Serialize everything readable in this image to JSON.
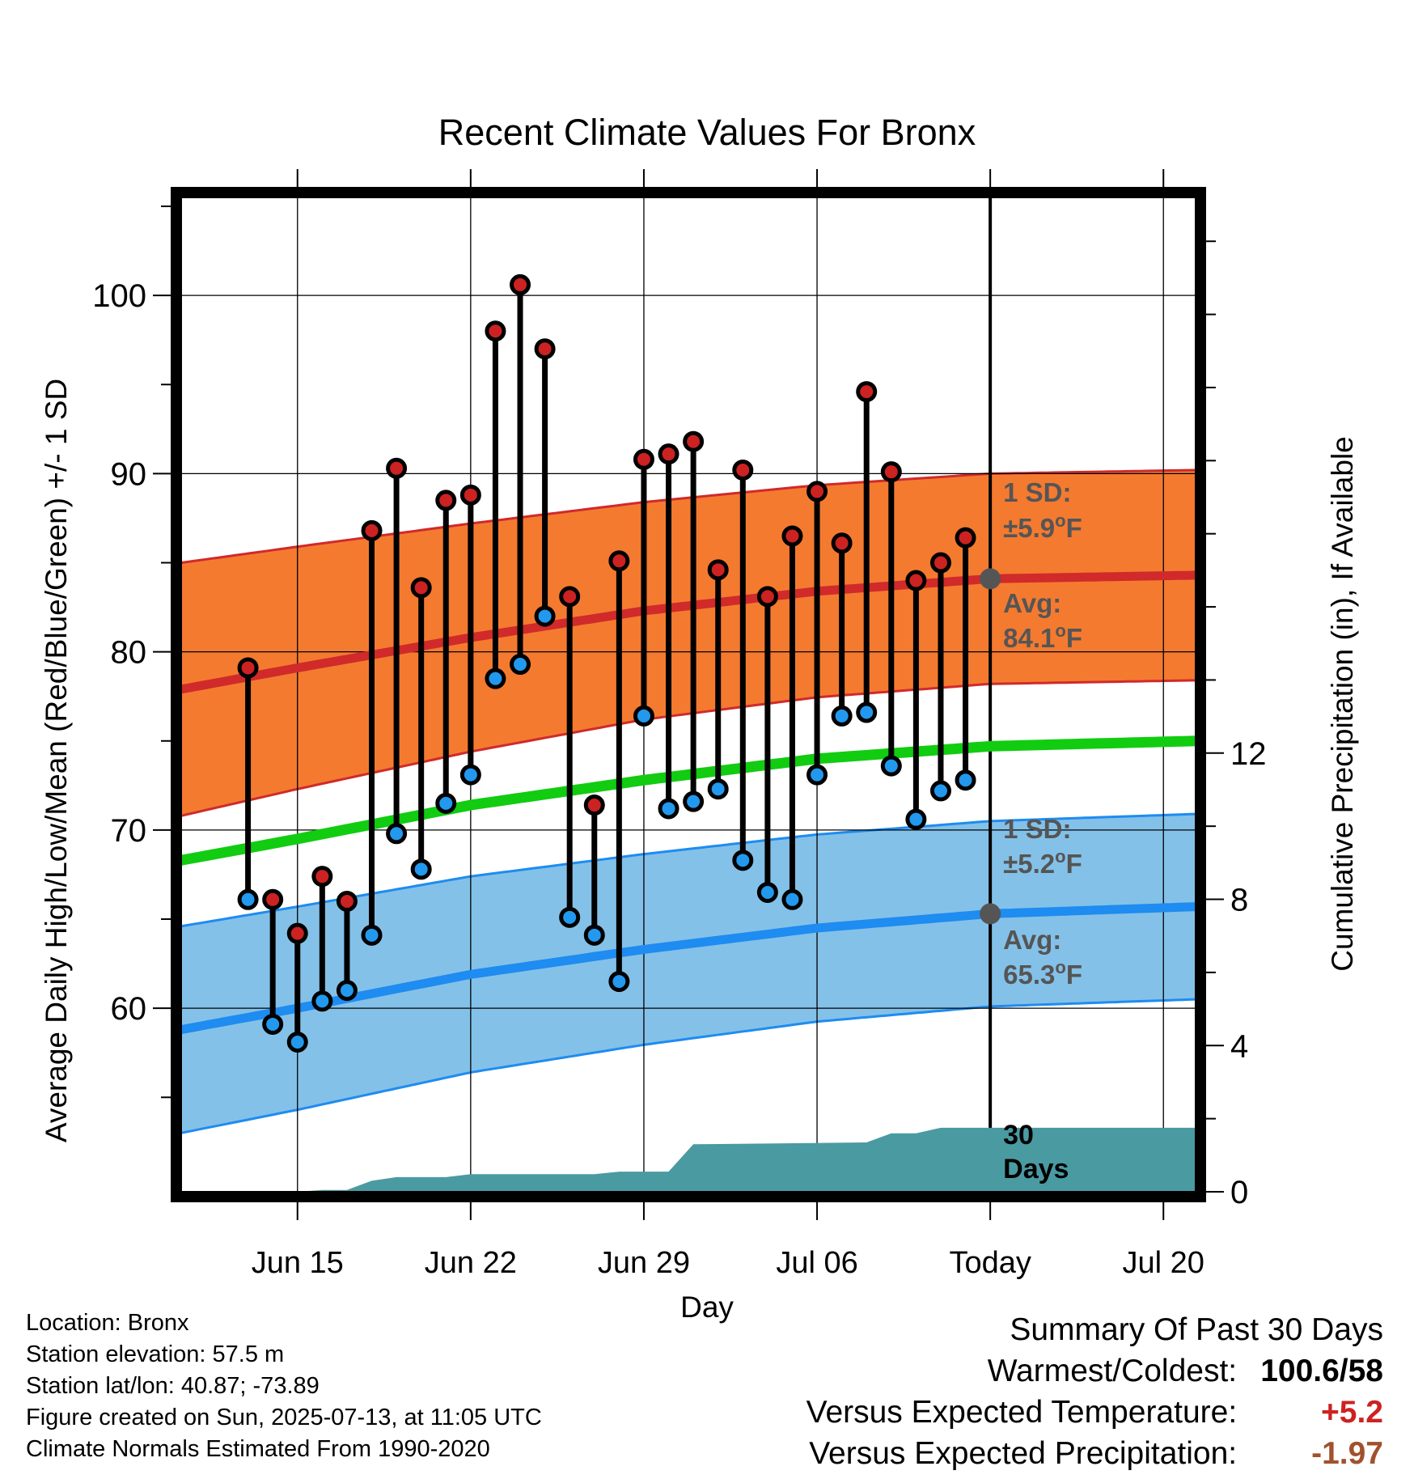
{
  "chart_data": {
    "type": "line",
    "title": "Recent Climate Values For Bronx",
    "xlabel": "Day",
    "ylabel": "Average Daily High/Low/Mean (Red/Blue/Green) +/- 1 SD",
    "y2label": "Cumulative Precipitation (in), If Available",
    "ylim": [
      49.7,
      105.5
    ],
    "y2lim": [
      0,
      27.2
    ],
    "xlim": [
      -4.7,
      36.3
    ],
    "y_ticks": [
      60,
      70,
      80,
      90,
      100
    ],
    "y2_ticks": [
      0,
      4,
      8,
      12
    ],
    "x_ticks": [
      {
        "day": 0,
        "label": "Jun 15"
      },
      {
        "day": 7,
        "label": "Jun 22"
      },
      {
        "day": 14,
        "label": "Jun 29"
      },
      {
        "day": 21,
        "label": "Jul 06"
      },
      {
        "day": 28,
        "label": "Today"
      },
      {
        "day": 35,
        "label": "Jul 20"
      }
    ],
    "grid": true,
    "today_day": 28,
    "days": [
      -2,
      -1,
      0,
      1,
      2,
      3,
      4,
      5,
      6,
      7,
      8,
      9,
      10,
      11,
      12,
      13,
      14,
      15,
      16,
      17,
      18,
      19,
      20,
      21,
      22,
      23,
      24,
      25,
      26,
      27
    ],
    "highs": [
      79.1,
      66.1,
      64.2,
      67.4,
      66.0,
      86.8,
      90.3,
      83.6,
      88.5,
      88.8,
      98.0,
      100.6,
      97.0,
      83.1,
      71.4,
      85.1,
      90.8,
      91.1,
      91.8,
      84.6,
      90.2,
      83.1,
      86.5,
      89.0,
      86.1,
      94.6,
      90.1,
      84.0,
      85.0,
      86.4
    ],
    "lows": [
      66.1,
      59.1,
      58.1,
      60.4,
      61.0,
      64.1,
      69.8,
      67.8,
      71.5,
      73.1,
      78.5,
      79.3,
      82.0,
      65.1,
      64.1,
      61.5,
      76.4,
      71.2,
      71.6,
      72.3,
      68.3,
      66.5,
      66.1,
      73.1,
      76.4,
      76.6,
      73.6,
      70.6,
      72.2,
      72.8
    ],
    "normal_high": [
      {
        "day": -4.7,
        "avg": 77.9,
        "sd": 7.1
      },
      {
        "day": 0,
        "avg": 79.1,
        "sd": 6.8
      },
      {
        "day": 7,
        "avg": 80.8,
        "sd": 6.4
      },
      {
        "day": 14,
        "avg": 82.3,
        "sd": 6.1
      },
      {
        "day": 21,
        "avg": 83.4,
        "sd": 5.95
      },
      {
        "day": 28,
        "avg": 84.1,
        "sd": 5.9
      },
      {
        "day": 36.3,
        "avg": 84.3,
        "sd": 5.9
      }
    ],
    "normal_low": [
      {
        "day": -4.7,
        "avg": 58.8,
        "sd": 5.8
      },
      {
        "day": 0,
        "avg": 60.0,
        "sd": 5.7
      },
      {
        "day": 7,
        "avg": 61.9,
        "sd": 5.5
      },
      {
        "day": 14,
        "avg": 63.3,
        "sd": 5.35
      },
      {
        "day": 21,
        "avg": 64.5,
        "sd": 5.25
      },
      {
        "day": 28,
        "avg": 65.3,
        "sd": 5.2
      },
      {
        "day": 36.3,
        "avg": 65.7,
        "sd": 5.2
      }
    ],
    "normal_mean": [
      {
        "day": -4.7,
        "avg": 68.3
      },
      {
        "day": 0,
        "avg": 69.5
      },
      {
        "day": 7,
        "avg": 71.4
      },
      {
        "day": 14,
        "avg": 72.8
      },
      {
        "day": 21,
        "avg": 74.0
      },
      {
        "day": 28,
        "avg": 74.7
      },
      {
        "day": 36.3,
        "avg": 75.0
      }
    ],
    "precip_cumulative": [
      {
        "day": -4.7,
        "value": 0
      },
      {
        "day": 0,
        "value": 0
      },
      {
        "day": 1,
        "value": 0.05
      },
      {
        "day": 2,
        "value": 0.05
      },
      {
        "day": 3,
        "value": 0.3
      },
      {
        "day": 4,
        "value": 0.4
      },
      {
        "day": 6,
        "value": 0.4
      },
      {
        "day": 7,
        "value": 0.48
      },
      {
        "day": 12,
        "value": 0.48
      },
      {
        "day": 13,
        "value": 0.55
      },
      {
        "day": 15,
        "value": 0.55
      },
      {
        "day": 16,
        "value": 1.3
      },
      {
        "day": 23,
        "value": 1.35
      },
      {
        "day": 24,
        "value": 1.6
      },
      {
        "day": 25,
        "value": 1.6
      },
      {
        "day": 26,
        "value": 1.75
      },
      {
        "day": 28,
        "value": 1.75
      },
      {
        "day": 36.3,
        "value": 1.75
      }
    ],
    "annotations": {
      "high_sd_label": "1 SD:",
      "high_sd_value": "±5.9",
      "high_avg_label": "Avg:",
      "high_avg_value": "84.1",
      "low_sd_label": "1 SD:",
      "low_sd_value": "±5.2",
      "low_avg_label": "Avg:",
      "low_avg_value": "65.3",
      "unit": "F",
      "degree": "o",
      "days_label_1": "30",
      "days_label_2": "Days"
    }
  },
  "colors": {
    "high_band": "#f47a30",
    "high_line": "#d02a2a",
    "low_band": "#84c1e8",
    "low_line": "#1e8cf0",
    "mean_line": "#11cc11",
    "precip": "#4a9aa2",
    "high_dot": "#cc2222",
    "low_dot": "#2299ee",
    "annotation": "#555555",
    "warm_value": "#cc2222",
    "precip_value": "#a0522d"
  },
  "footer": {
    "location": "Location: Bronx",
    "elevation": "Station elevation: 57.5 m",
    "latlon": "Station lat/lon: 40.87; -73.89",
    "created": "Figure created on Sun, 2025-07-13, at 11:05 UTC",
    "normals": "Climate Normals Estimated From 1990-2020"
  },
  "summary": {
    "heading": "Summary Of Past 30 Days",
    "warmest_label": "Warmest/Coldest:",
    "warmest_value": "100.6/58",
    "temp_label": "Versus Expected Temperature:",
    "temp_value": "+5.2",
    "precip_label": "Versus Expected Precipitation:",
    "precip_value": "-1.97"
  }
}
